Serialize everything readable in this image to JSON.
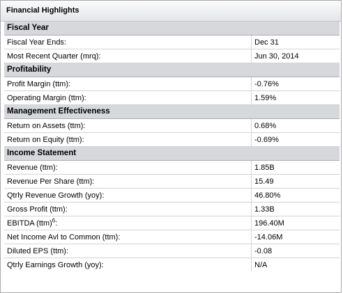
{
  "panel": {
    "title": "Financial Highlights"
  },
  "sections": {
    "fiscal_year": {
      "title": "Fiscal Year",
      "rows": [
        {
          "label": "Fiscal Year Ends:",
          "value": "Dec 31"
        },
        {
          "label": "Most Recent Quarter (mrq):",
          "value": "Jun 30, 2014"
        }
      ]
    },
    "profitability": {
      "title": "Profitability",
      "rows": [
        {
          "label": "Profit Margin (ttm):",
          "value": "-0.76%"
        },
        {
          "label": "Operating Margin (ttm):",
          "value": "1.59%"
        }
      ]
    },
    "management": {
      "title": "Management Effectiveness",
      "rows": [
        {
          "label": "Return on Assets (ttm):",
          "value": "0.68%"
        },
        {
          "label": "Return on Equity (ttm):",
          "value": "-0.69%"
        }
      ]
    },
    "income": {
      "title": "Income Statement",
      "rows": [
        {
          "label": "Revenue (ttm):",
          "value": "1.85B"
        },
        {
          "label": "Revenue Per Share (ttm):",
          "value": "15.49"
        },
        {
          "label": "Qtrly Revenue Growth (yoy):",
          "value": "46.80%"
        },
        {
          "label": "Gross Profit (ttm):",
          "value": "1.33B"
        },
        {
          "label": "EBITDA (ttm)",
          "footnote": "6",
          "suffix": ":",
          "value": "196.40M"
        },
        {
          "label": "Net Income Avl to Common (ttm):",
          "value": "-14.06M"
        },
        {
          "label": "Diluted EPS (ttm):",
          "value": "-0.08"
        },
        {
          "label": "Qtrly Earnings Growth (yoy):",
          "value": "N/A"
        }
      ]
    }
  }
}
